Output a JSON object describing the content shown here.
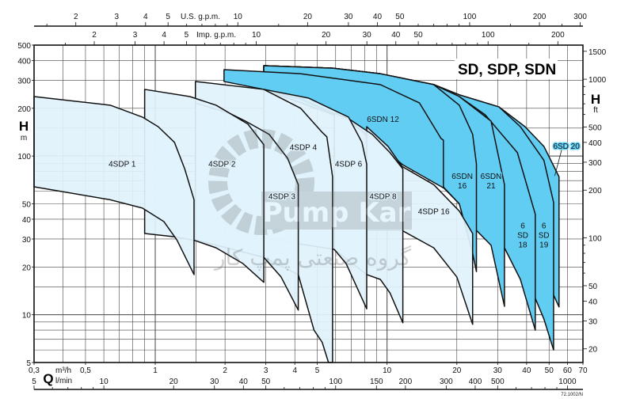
{
  "chart_data": {
    "type": "area",
    "title": "SD, SDP, SDN",
    "figure_code": "72.1002/N",
    "colors": {
      "light_fill": "#e1f2fc",
      "dark_fill": "#62cdf3",
      "stroke": "#111111",
      "grid": "#444444"
    },
    "axes": {
      "q_m3h": {
        "symbol": "Q",
        "unit": "m³/h",
        "scale": "log",
        "range": [
          0.3,
          70
        ],
        "values": [
          0.3,
          0.5,
          1,
          2,
          3,
          4,
          5,
          10,
          20,
          30,
          40,
          50,
          60,
          70
        ],
        "labels": [
          "0,3",
          "0,5",
          "1",
          "2",
          "3",
          "4",
          "5",
          "10",
          "20",
          "30",
          "40",
          "50",
          "60",
          "70"
        ]
      },
      "q_lmin": {
        "unit": "l/min",
        "per_m3h": 16.667,
        "values": [
          5,
          10,
          20,
          30,
          40,
          50,
          100,
          150,
          200,
          300,
          400,
          500,
          1000
        ],
        "labels": [
          "5",
          "10",
          "20",
          "30",
          "40",
          "50",
          "100",
          "150",
          "200",
          "300",
          "400",
          "500",
          "1000"
        ],
        "minor": [
          6,
          7,
          8,
          9,
          60,
          70,
          80,
          90,
          600,
          700,
          800,
          900
        ]
      },
      "q_usgpm": {
        "unit": "U.S. g.p.m.",
        "per_m3h": 4.403,
        "values": [
          2,
          3,
          4,
          5,
          10,
          20,
          30,
          40,
          50,
          100,
          200,
          300
        ],
        "labels": [
          "2",
          "3",
          "4",
          "5",
          "10",
          "20",
          "30",
          "40",
          "50",
          "100",
          "200",
          "300"
        ],
        "minor": [
          1.5,
          6,
          7,
          8,
          9,
          15,
          60,
          70,
          80,
          90,
          150,
          250
        ]
      },
      "q_impgpm": {
        "unit": "Imp. g.p.m.",
        "per_m3h": 3.666,
        "values": [
          2,
          3,
          4,
          5,
          10,
          20,
          30,
          40,
          50,
          100,
          200
        ],
        "labels": [
          "2",
          "3",
          "4",
          "5",
          "10",
          "20",
          "30",
          "40",
          "50",
          "100",
          "200"
        ],
        "minor": [
          1.5,
          6,
          7,
          8,
          9,
          15,
          60,
          70,
          80,
          90,
          150
        ]
      },
      "h_m": {
        "symbol": "H",
        "unit": "m",
        "scale": "log",
        "range": [
          5,
          500
        ],
        "values": [
          5,
          10,
          20,
          30,
          40,
          50,
          100,
          200,
          300,
          400,
          500
        ],
        "labels": [
          "5",
          "10",
          "20",
          "30",
          "40",
          "50",
          "100",
          "200",
          "300",
          "400",
          "500"
        ]
      },
      "h_ft": {
        "symbol": "H",
        "unit": "ft",
        "per_m": 3.2808,
        "values": [
          20,
          30,
          40,
          50,
          100,
          200,
          300,
          400,
          500,
          1000,
          1500
        ],
        "labels": [
          "20",
          "30",
          "40",
          "50",
          "100",
          "200",
          "300",
          "400",
          "500",
          "1000",
          "1500"
        ],
        "minor": [
          60,
          70,
          80,
          90,
          600,
          700,
          800,
          900
        ]
      }
    },
    "grid": {
      "q_m3h": [
        0.4,
        0.5,
        0.6,
        0.7,
        0.8,
        0.9,
        1,
        1.5,
        2,
        3,
        4,
        5,
        6,
        7,
        8,
        9,
        10,
        20,
        30,
        40,
        50,
        60,
        70
      ],
      "h_m": [
        6,
        7,
        8,
        9,
        10,
        15,
        20,
        30,
        40,
        50,
        60,
        70,
        80,
        90,
        100,
        150,
        200,
        300,
        400
      ]
    },
    "regions": [
      {
        "name": "6SD 20",
        "label": [
          "6SD 20"
        ],
        "tone": "dark",
        "label_at": [
          59.4,
          116
        ],
        "leader_to": [
          52.9,
          75
        ],
        "top": [
          [
            2.94,
            371
          ],
          [
            5.82,
            358
          ],
          [
            9.35,
            330
          ],
          [
            15.9,
            282
          ],
          [
            20.5,
            243
          ],
          [
            30.4,
            204
          ],
          [
            39.4,
            153
          ],
          [
            47.5,
            115
          ],
          [
            55.2,
            74
          ]
        ],
        "bottom": [
          [
            2.94,
            272
          ],
          [
            5.82,
            193
          ],
          [
            11.7,
            97
          ],
          [
            17.5,
            81
          ],
          [
            24,
            61
          ],
          [
            32.9,
            49
          ],
          [
            43.6,
            30.7
          ],
          [
            52.3,
            13.3
          ],
          [
            55.2,
            11.2
          ]
        ]
      },
      {
        "name": "6SD 19",
        "label": [
          "6",
          "SD",
          "19"
        ],
        "tone": "dark",
        "label_at": [
          47.5,
          32
        ],
        "top": [
          [
            2.94,
            371
          ],
          [
            5.82,
            358
          ],
          [
            9.35,
            330
          ],
          [
            15.9,
            282
          ],
          [
            20.5,
            243
          ],
          [
            30.4,
            204
          ],
          [
            37.6,
            153
          ],
          [
            47.5,
            94
          ],
          [
            52.3,
            51
          ]
        ],
        "bottom": [
          [
            2.94,
            272
          ],
          [
            5.82,
            193
          ],
          [
            11.7,
            97
          ],
          [
            17.5,
            77
          ],
          [
            24,
            61
          ],
          [
            32.1,
            34
          ],
          [
            38.5,
            21.7
          ],
          [
            43.6,
            12.7
          ],
          [
            47.5,
            9.4
          ],
          [
            52.3,
            6.0
          ]
        ]
      },
      {
        "name": "6SD 18",
        "label": [
          "6",
          "SD",
          "18"
        ],
        "tone": "dark",
        "label_at": [
          38.5,
          32
        ],
        "top": [
          [
            2.94,
            371
          ],
          [
            5.82,
            358
          ],
          [
            9.35,
            330
          ],
          [
            15.9,
            282
          ],
          [
            20.5,
            237
          ],
          [
            26.5,
            182
          ],
          [
            36.5,
            105
          ],
          [
            43.6,
            43
          ]
        ],
        "bottom": [
          [
            2.94,
            272
          ],
          [
            5.82,
            193
          ],
          [
            11.7,
            97
          ],
          [
            17.5,
            73
          ],
          [
            24,
            43
          ],
          [
            28.1,
            30.7
          ],
          [
            32.1,
            26.4
          ],
          [
            37.6,
            16.7
          ],
          [
            43.6,
            8.0
          ]
        ]
      },
      {
        "name": "6SDN 21",
        "label": [
          "6SDN",
          "21"
        ],
        "tone": "dark",
        "label_at": [
          28.1,
          70
        ],
        "top": [
          [
            2.94,
            371
          ],
          [
            5.82,
            358
          ],
          [
            9.35,
            330
          ],
          [
            15.9,
            282
          ],
          [
            20.5,
            237
          ],
          [
            28.1,
            166
          ],
          [
            32.1,
            66
          ]
        ],
        "bottom": [
          [
            2.94,
            272
          ],
          [
            5.82,
            193
          ],
          [
            11.7,
            97
          ],
          [
            15.9,
            73
          ],
          [
            20.5,
            50
          ],
          [
            23.4,
            39
          ],
          [
            24.3,
            34
          ],
          [
            28.1,
            27.4
          ],
          [
            32.1,
            11.3
          ]
        ]
      },
      {
        "name": "6SDN 16",
        "label": [
          "6SDN",
          "16"
        ],
        "tone": "dark",
        "label_at": [
          21.1,
          70
        ],
        "top": [
          [
            2.94,
            371
          ],
          [
            5.82,
            358
          ],
          [
            9.35,
            330
          ],
          [
            15.9,
            282
          ],
          [
            20.5,
            209
          ],
          [
            23.4,
            137
          ],
          [
            24.3,
            89
          ]
        ],
        "bottom": [
          [
            2.94,
            263
          ],
          [
            6.82,
            168
          ],
          [
            11.7,
            88
          ],
          [
            15.9,
            74
          ],
          [
            20.5,
            50
          ],
          [
            23.4,
            24.4
          ],
          [
            24.3,
            18.7
          ]
        ]
      },
      {
        "name": "6SDN 12",
        "label": [
          "6SDN 12"
        ],
        "tone": "dark",
        "label_at": [
          9.6,
          172
        ],
        "top": [
          [
            1.98,
            350
          ],
          [
            4.24,
            330
          ],
          [
            9.35,
            282
          ],
          [
            13.8,
            216
          ],
          [
            17.1,
            129
          ],
          [
            17.5,
            126
          ]
        ],
        "bottom": [
          [
            1.98,
            295
          ],
          [
            2.94,
            263
          ],
          [
            4.24,
            229
          ],
          [
            6.82,
            168
          ],
          [
            11.7,
            88
          ],
          [
            17.5,
            63
          ]
        ]
      },
      {
        "name": "4SDP 16",
        "label": [
          "4SDP 16"
        ],
        "tone": "light",
        "label_at": [
          15.9,
          45
        ],
        "top": [
          [
            8.17,
            153
          ],
          [
            10.1,
            115
          ],
          [
            11.6,
            86
          ],
          [
            15.9,
            66
          ],
          [
            20.5,
            45
          ],
          [
            23.4,
            32.5
          ]
        ],
        "bottom": [
          [
            8.17,
            34
          ],
          [
            11.6,
            34
          ],
          [
            15.9,
            26.4
          ],
          [
            20,
            17.3
          ],
          [
            23.4,
            8.7
          ]
        ]
      },
      {
        "name": "4SDP 8",
        "label": [
          "4SDP 8"
        ],
        "tone": "light",
        "label_at": [
          9.6,
          56
        ],
        "top": [
          [
            5.92,
            186
          ],
          [
            6.82,
            172
          ],
          [
            8.63,
            137
          ],
          [
            10.3,
            105
          ],
          [
            11.7,
            83
          ]
        ],
        "bottom": [
          [
            5.92,
            25.8
          ],
          [
            8.17,
            17.9
          ],
          [
            9.35,
            16.7
          ],
          [
            10.3,
            13.7
          ],
          [
            11.7,
            8.9
          ]
        ]
      },
      {
        "name": "4SDP 6",
        "label": [
          "4SDP 6"
        ],
        "tone": "light",
        "label_at": [
          6.82,
          90
        ],
        "top": [
          [
            2.94,
            263
          ],
          [
            4.58,
            232
          ],
          [
            6.82,
            176
          ],
          [
            7.79,
            122
          ],
          [
            8.17,
            89
          ]
        ],
        "bottom": [
          [
            2.94,
            30.7
          ],
          [
            4.14,
            28
          ],
          [
            5.92,
            25.8
          ],
          [
            6.66,
            21
          ],
          [
            8.17,
            10.9
          ]
        ]
      },
      {
        "name": "4SDP 4",
        "label": [
          "4SDP 4"
        ],
        "tone": "light",
        "label_at": [
          4.35,
          114
        ],
        "top": [
          [
            1.49,
            295
          ],
          [
            2.94,
            263
          ],
          [
            4.24,
            200
          ],
          [
            5.25,
            141
          ],
          [
            5.5,
            132
          ],
          [
            5.82,
            74
          ]
        ],
        "bottom": [
          [
            1.49,
            29.7
          ],
          [
            2.94,
            23
          ],
          [
            4.14,
            17.9
          ],
          [
            4.84,
            8
          ],
          [
            5.25,
            6.7
          ],
          [
            5.59,
            5
          ],
          [
            5.82,
            5
          ]
        ]
      },
      {
        "name": "4SDP 3",
        "label": [
          "4SDP 3"
        ],
        "tone": "light",
        "label_at": [
          3.52,
          56
        ],
        "top": [
          [
            1.49,
            216
          ],
          [
            2.09,
            186
          ],
          [
            2.45,
            166
          ],
          [
            3.1,
            137
          ],
          [
            3.72,
            97
          ],
          [
            4.14,
            66
          ]
        ],
        "bottom": [
          [
            1.49,
            29.7
          ],
          [
            2.94,
            23
          ],
          [
            3.49,
            17.3
          ],
          [
            4.14,
            10.7
          ]
        ]
      },
      {
        "name": "4SDP 2",
        "label": [
          "4SDP 2"
        ],
        "tone": "light",
        "label_at": [
          1.94,
          90
        ],
        "top": [
          [
            0.9,
            263
          ],
          [
            1.41,
            237
          ],
          [
            1.83,
            209
          ],
          [
            2.51,
            159
          ],
          [
            2.94,
            118
          ]
        ],
        "bottom": [
          [
            0.9,
            32.5
          ],
          [
            1.21,
            31
          ],
          [
            1.49,
            29.3
          ],
          [
            1.83,
            26.4
          ],
          [
            2.39,
            21
          ],
          [
            2.94,
            16
          ]
        ]
      },
      {
        "name": "4SDP 1",
        "label": [
          "4SDP 1"
        ],
        "tone": "light",
        "label_at": [
          0.72,
          90
        ],
        "top": [
          [
            0.3,
            237
          ],
          [
            0.64,
            209
          ],
          [
            0.88,
            176
          ],
          [
            1.03,
            153
          ],
          [
            1.21,
            122
          ],
          [
            1.34,
            83
          ],
          [
            1.47,
            53
          ]
        ],
        "bottom": [
          [
            0.3,
            64
          ],
          [
            0.64,
            53
          ],
          [
            0.88,
            47
          ],
          [
            1.09,
            38.6
          ],
          [
            1.24,
            29.6
          ],
          [
            1.47,
            17.9
          ]
        ]
      }
    ]
  },
  "watermark": {
    "logo_text": "Pump Kar",
    "persian_text": "گروه صنعتی پمپ کار"
  }
}
